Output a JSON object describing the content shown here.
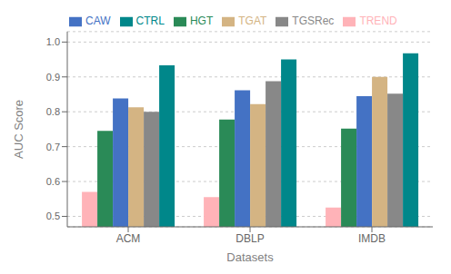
{
  "chart_data": {
    "type": "bar",
    "xlabel": "Datasets",
    "ylabel": "AUC Score",
    "categories": [
      "ACM",
      "DBLP",
      "IMDB"
    ],
    "series": [
      {
        "name": "TREND",
        "color": "#ffb3b8",
        "values": [
          0.57,
          0.555,
          0.525
        ]
      },
      {
        "name": "HGT",
        "color": "#2a8a57",
        "values": [
          0.745,
          0.778,
          0.752
        ]
      },
      {
        "name": "CAW",
        "color": "#4472c4",
        "values": [
          0.838,
          0.862,
          0.845
        ]
      },
      {
        "name": "TGAT",
        "color": "#d4b483",
        "values": [
          0.813,
          0.822,
          0.9
        ]
      },
      {
        "name": "TGSRec",
        "color": "#888888",
        "values": [
          0.8,
          0.888,
          0.852
        ]
      },
      {
        "name": "CTRL",
        "color": "#00878a",
        "values": [
          0.933,
          0.95,
          0.968
        ]
      }
    ],
    "ylim": [
      0.47,
      1.03
    ],
    "yticks": [
      0.5,
      0.6,
      0.7,
      0.8,
      0.9,
      {
        "value": 1.0,
        "label": "1.0"
      }
    ],
    "grid": true,
    "legend": "upper left"
  }
}
